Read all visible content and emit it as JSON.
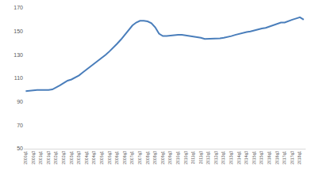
{
  "chart_data": {
    "type": "line",
    "categories": [
      "2000q1",
      null,
      "2000q3",
      null,
      "2001q1",
      null,
      "2001q3",
      null,
      "2002q1",
      null,
      "2002q3",
      null,
      "2003q1",
      null,
      "2003q3",
      null,
      "2004q1",
      null,
      "2004q3",
      null,
      "2005q1",
      null,
      "2005q3",
      null,
      "2006q1",
      null,
      "2006q3",
      null,
      "2007q1",
      null,
      "2007q3",
      null,
      "2008q1",
      null,
      "2008q3",
      null,
      "2009q1",
      null,
      "2009q3",
      null,
      "2010q1",
      null,
      "2010q3",
      null,
      "2011q1",
      null,
      "2011q3",
      null,
      "2012q1",
      null,
      "2012q3",
      null,
      "2013q1",
      null,
      "2013q3",
      null,
      "2014q1",
      null,
      "2014q3",
      null,
      "2015q1",
      null,
      "2015q3",
      null,
      "2016q1",
      null,
      "2016q3",
      null,
      "2017q1",
      null,
      "2017q3",
      null,
      "2018q1",
      null
    ],
    "values": [
      99,
      99.5,
      100,
      100,
      100,
      99.8,
      100,
      100.5,
      102,
      104,
      106,
      108,
      109,
      110.5,
      112.5,
      115,
      117.5,
      120,
      122,
      124.5,
      127,
      130,
      133,
      136,
      139.5,
      143,
      147,
      151,
      155,
      157.5,
      159,
      159,
      158.5,
      157,
      153.5,
      148,
      146,
      146,
      146.5,
      147,
      147,
      147,
      146.5,
      146.5,
      145.5,
      145,
      144.5,
      143.5,
      143.5,
      143.5,
      143.5,
      144,
      144.5,
      145,
      146,
      147,
      148,
      149,
      149.5,
      150,
      151,
      151.5,
      152.5,
      153,
      154,
      155,
      156,
      157.5,
      157.5,
      159,
      160,
      161,
      162,
      160
    ],
    "color": "#4a7ebb",
    "ylim": [
      50,
      170
    ],
    "yticks": [
      50,
      70,
      90,
      110,
      130,
      150,
      170
    ],
    "grid": false
  }
}
